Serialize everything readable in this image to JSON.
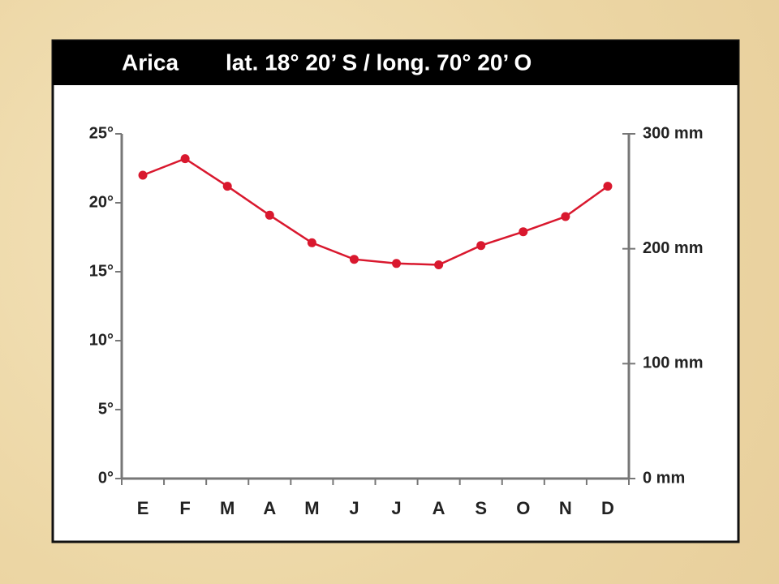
{
  "chart_data": {
    "type": "line",
    "title": "Arica",
    "subtitle": "lat. 18° 20’ S / long. 70° 20’ O",
    "categories": [
      "E",
      "F",
      "M",
      "A",
      "M",
      "J",
      "J",
      "A",
      "S",
      "O",
      "N",
      "D"
    ],
    "values": [
      22.0,
      23.2,
      21.2,
      19.1,
      17.1,
      15.9,
      15.6,
      15.5,
      16.9,
      17.9,
      19.0,
      21.2
    ],
    "color": "#d9182e",
    "ylim": [
      0,
      25
    ],
    "yticks": [
      {
        "value": 0,
        "label": "0°"
      },
      {
        "value": 5,
        "label": "5°"
      },
      {
        "value": 10,
        "label": "10°"
      },
      {
        "value": 15,
        "label": "15°"
      },
      {
        "value": 20,
        "label": "20°"
      },
      {
        "value": 25,
        "label": "25°"
      }
    ],
    "y2lim": [
      0,
      300
    ],
    "y2ticks": [
      {
        "value": 0,
        "label": "0 mm"
      },
      {
        "value": 100,
        "label": "100 mm"
      },
      {
        "value": 200,
        "label": "200 mm"
      },
      {
        "value": 300,
        "label": "300 mm"
      }
    ]
  }
}
